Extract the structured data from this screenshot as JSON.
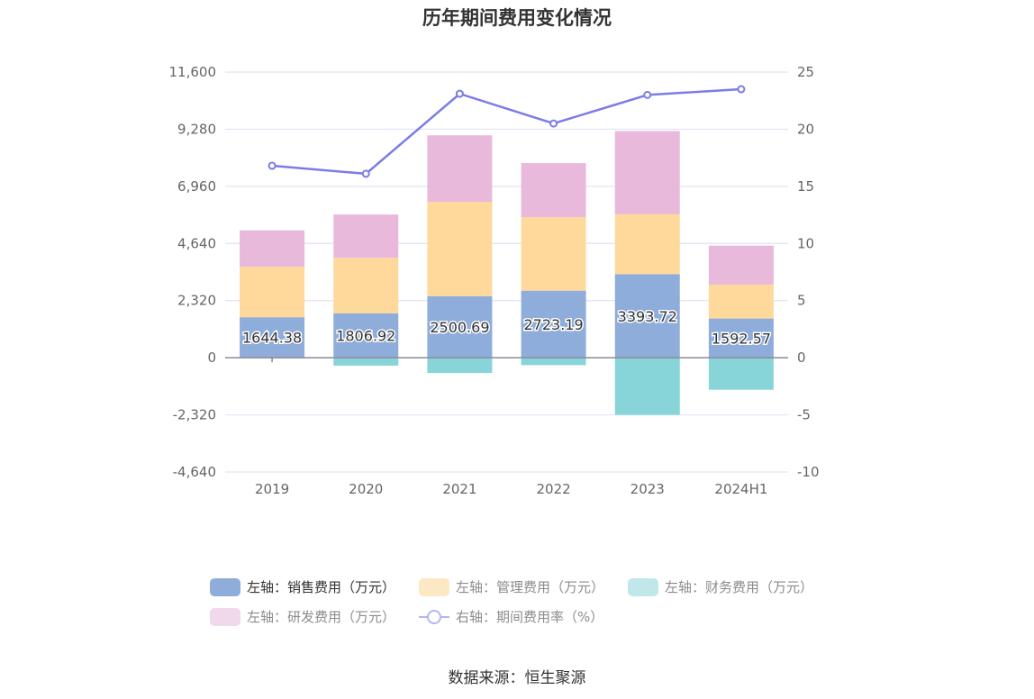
{
  "chart_data": {
    "type": "bar",
    "title": "历年期间费用变化情况",
    "categories": [
      "2019",
      "2020",
      "2021",
      "2022",
      "2023",
      "2024H1"
    ],
    "stacked": true,
    "left_axis": {
      "ylim": [
        -4640,
        11600
      ],
      "ticks": [
        "11,600",
        "9,280",
        "6,960",
        "4,640",
        "2,320",
        "0",
        "-2,320",
        "-4,640"
      ],
      "tick_values": [
        11600,
        9280,
        6960,
        4640,
        2320,
        0,
        -2320,
        -4640
      ]
    },
    "right_axis": {
      "ylim": [
        -10,
        25
      ],
      "ticks": [
        "25",
        "20",
        "15",
        "10",
        "5",
        "0",
        "-5",
        "-10"
      ],
      "tick_values": [
        25,
        20,
        15,
        10,
        5,
        0,
        -5,
        -10
      ]
    },
    "series": [
      {
        "name": "左轴：销售费用（万元）",
        "axis": "left",
        "color": "#8fadda",
        "values": [
          1644.38,
          1806.92,
          2500.69,
          2723.19,
          3393.72,
          1592.57
        ],
        "labels": [
          "1644.38",
          "1806.92",
          "2500.69",
          "2723.19",
          "3393.72",
          "1592.57"
        ]
      },
      {
        "name": "左轴：管理费用（万元）",
        "axis": "left",
        "color": "#fed99b",
        "values": [
          2050,
          2250,
          3830,
          2980,
          2430,
          1380
        ]
      },
      {
        "name": "左轴：财务费用（万元）",
        "axis": "left",
        "color": "#87d5d8",
        "values": [
          -10,
          -320,
          -620,
          -300,
          -2320,
          -1300
        ]
      },
      {
        "name": "左轴：研发费用（万元）",
        "axis": "left",
        "color": "#e8b9db",
        "values": [
          1480,
          1760,
          2700,
          2200,
          3380,
          1580
        ]
      },
      {
        "name": "右轴：期间费用率（%）",
        "axis": "right",
        "type": "line",
        "color": "#7b7de7",
        "values": [
          16.8,
          16.1,
          23.1,
          20.5,
          23.0,
          23.5
        ]
      }
    ],
    "legend_position": "bottom",
    "grid": true
  },
  "legend": [
    {
      "label": "左轴：销售费用（万元）",
      "color": "#8fadda",
      "kind": "bar",
      "dim": false
    },
    {
      "label": "左轴：管理费用（万元）",
      "color": "#fde8c4",
      "kind": "bar",
      "dim": true
    },
    {
      "label": "左轴：财务费用（万元）",
      "color": "#c0e8ea",
      "kind": "bar",
      "dim": true
    },
    {
      "label": "左轴：研发费用（万元）",
      "color": "#f1d9ec",
      "kind": "bar",
      "dim": true
    },
    {
      "label": "右轴：期间费用率（%）",
      "color": "#b4b5f2",
      "kind": "line",
      "dim": true
    }
  ],
  "source": "数据来源：恒生聚源"
}
